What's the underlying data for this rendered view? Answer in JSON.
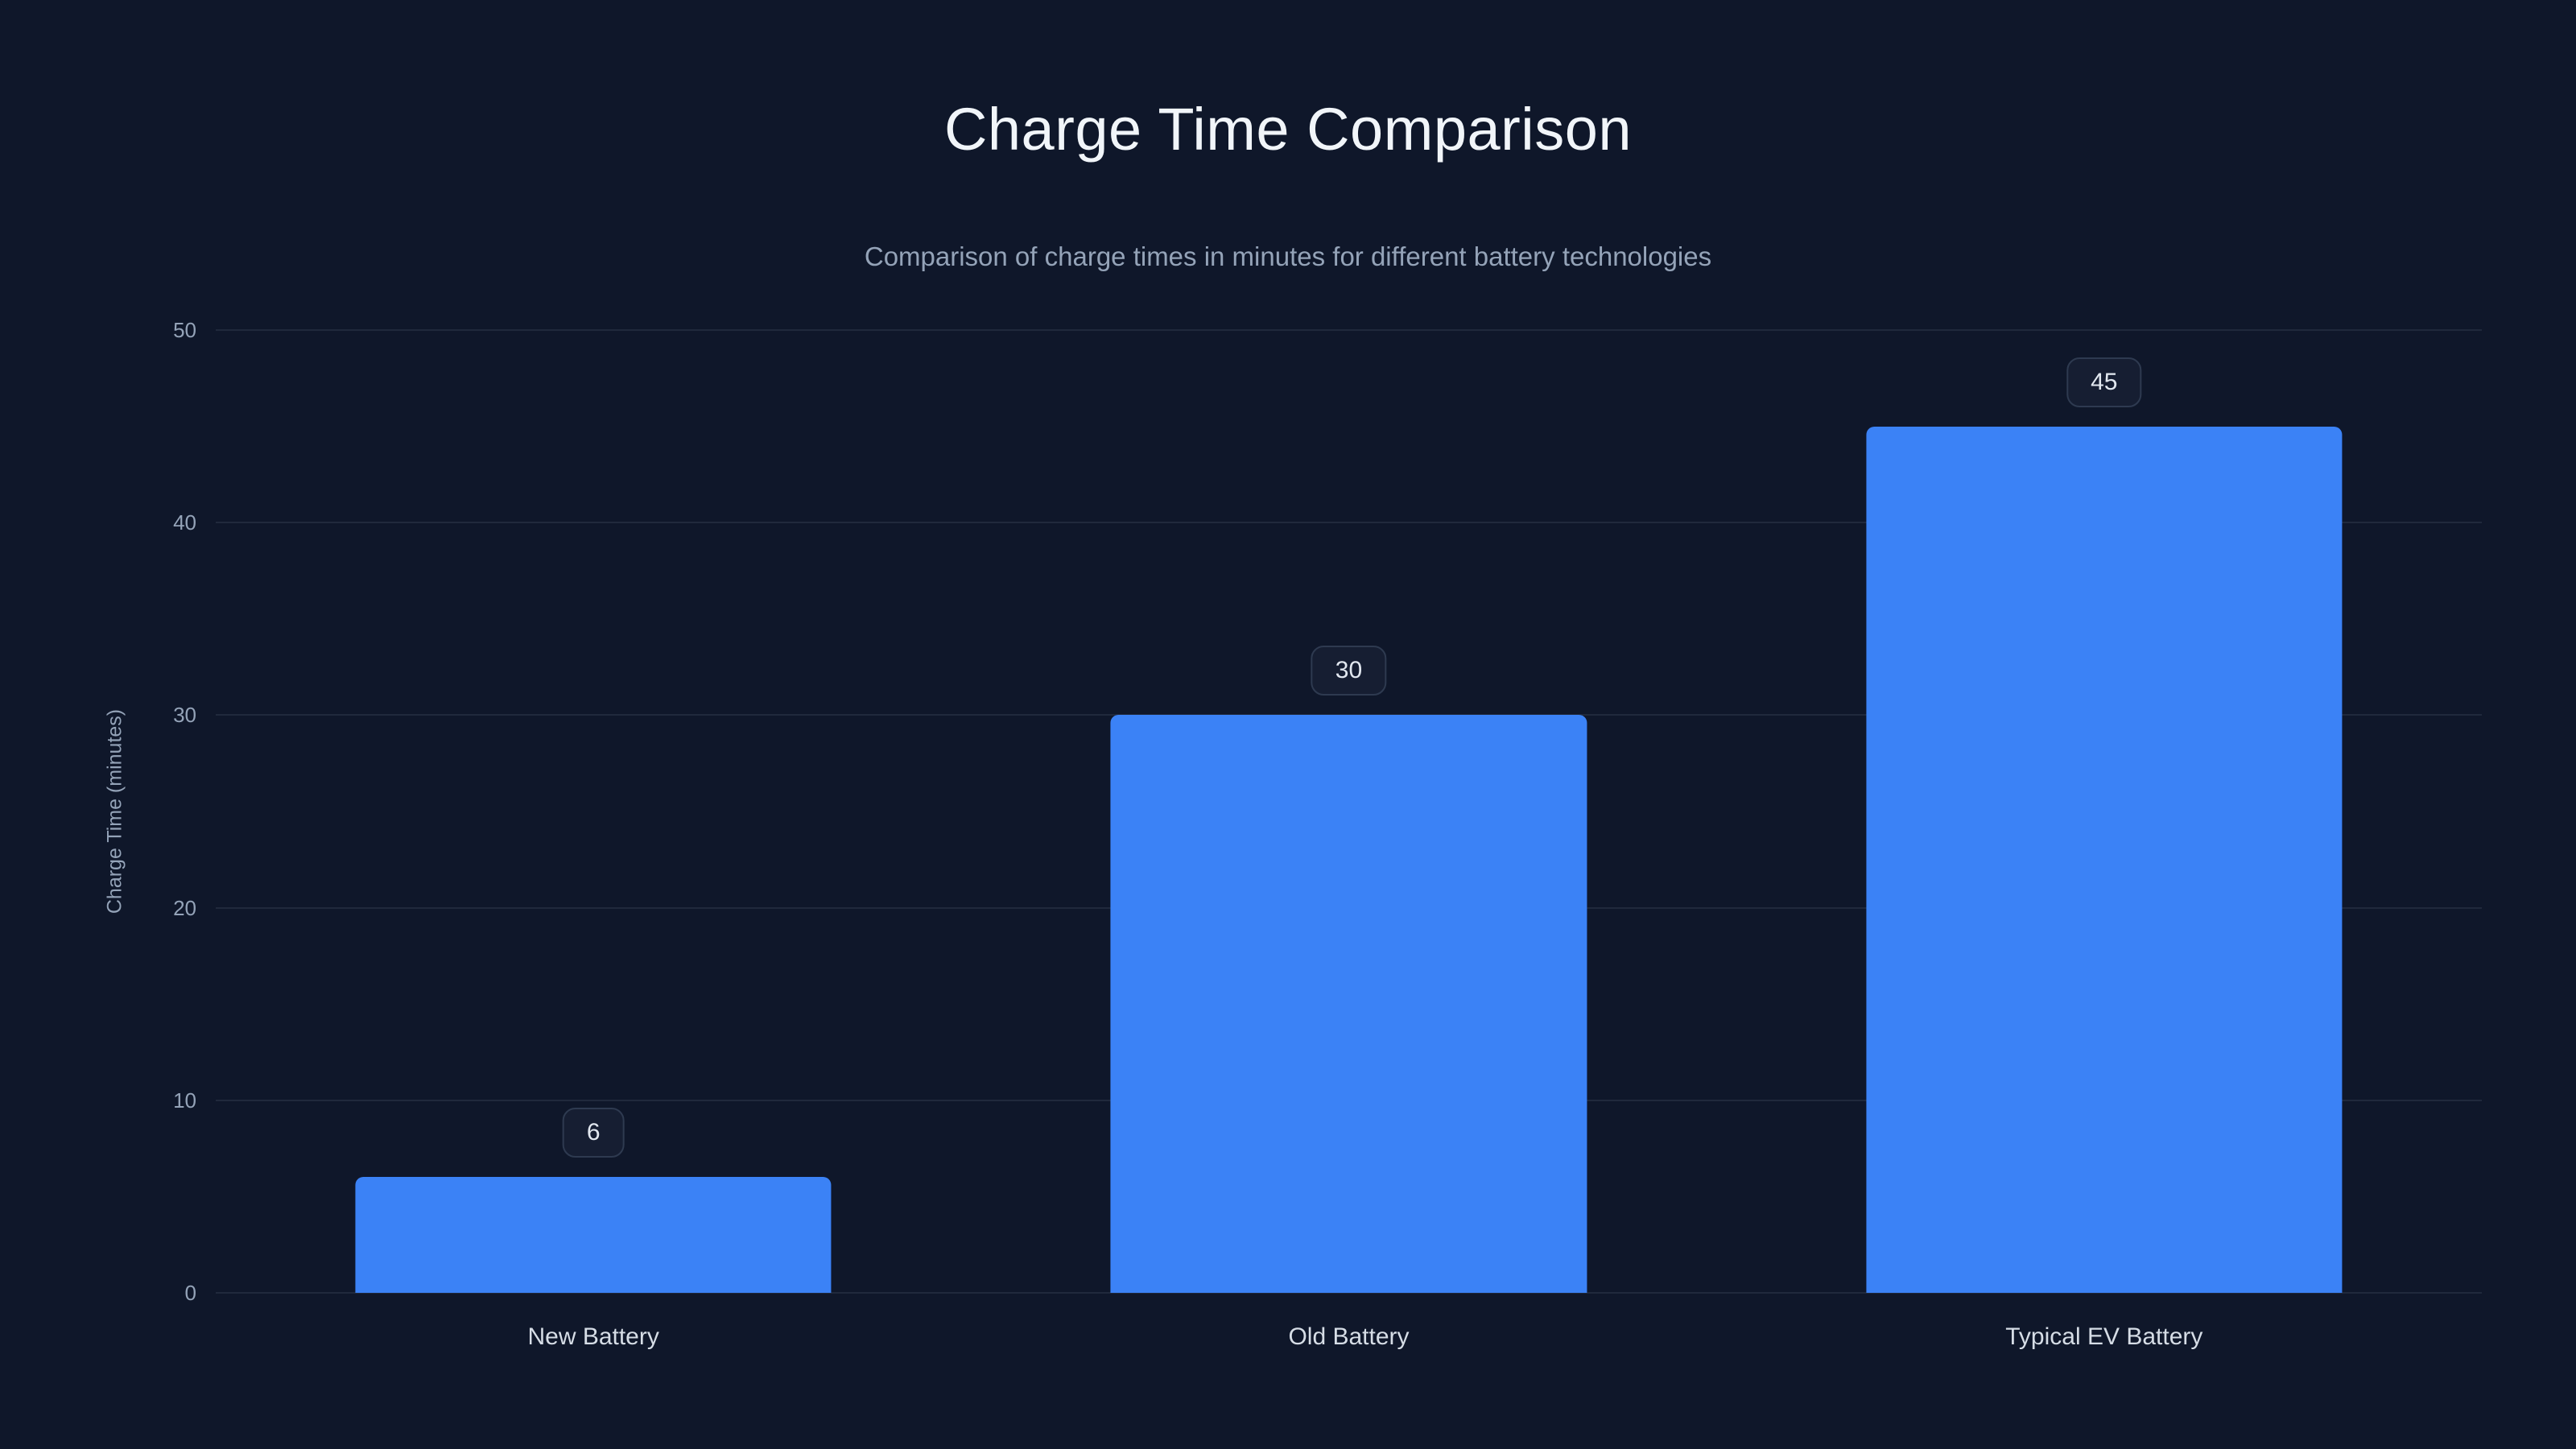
{
  "chart_data": {
    "type": "bar",
    "title": "Charge Time Comparison",
    "subtitle": "Comparison of charge times in minutes for different battery technologies",
    "categories": [
      "New Battery",
      "Old Battery",
      "Typical EV Battery"
    ],
    "values": [
      6,
      30,
      45
    ],
    "xlabel": "",
    "ylabel": "Charge Time (minutes)",
    "ylim": [
      0,
      50
    ],
    "yticks": [
      0,
      10,
      20,
      30,
      40,
      50
    ],
    "grid": true,
    "legend_position": "none",
    "bar_color": "#3b82f6",
    "background_color": "#0f172a"
  }
}
